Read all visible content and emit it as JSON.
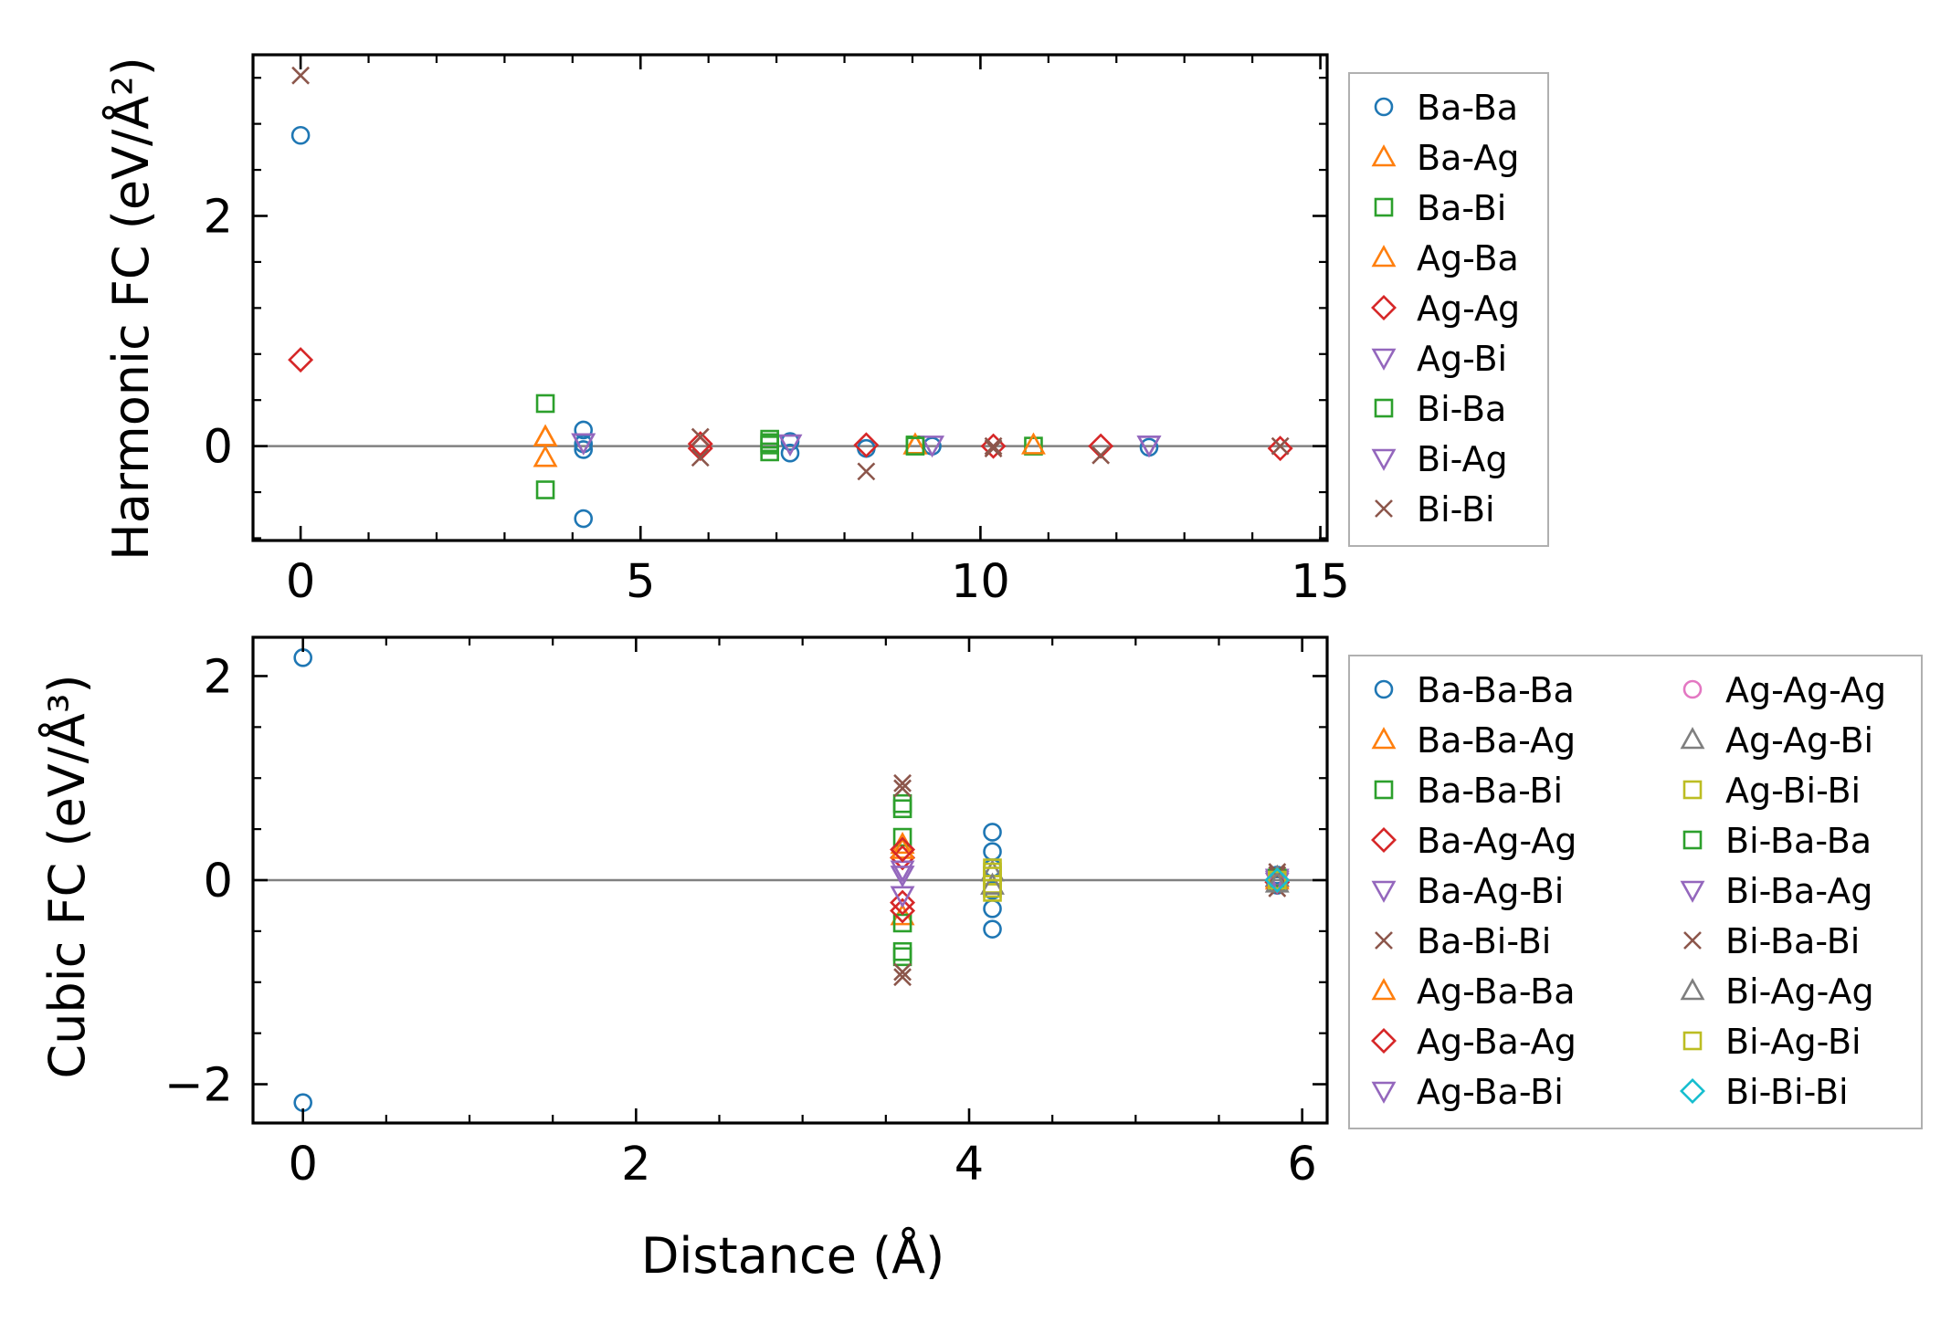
{
  "chart_data": [
    {
      "type": "scatter",
      "ylabel": "Harmonic FC (eV/Å²)",
      "xlabel": "",
      "xlim": [
        -0.7,
        15.1
      ],
      "ylim": [
        -0.82,
        3.4
      ],
      "xticks": [
        0,
        5,
        10,
        15
      ],
      "yticks": [
        0,
        2
      ],
      "xtick_labels": [
        "0",
        "5",
        "10",
        "15"
      ],
      "ytick_labels": [
        "0",
        "2"
      ],
      "minor_x_step": 1,
      "minor_y_step": 0.4,
      "zero_line": true,
      "legend_placement": "outside-right",
      "series": [
        {
          "name": "Ba-Ba",
          "marker": "circle",
          "color": "#1f77b4",
          "points": [
            [
              0,
              2.7
            ],
            [
              4.16,
              0.14
            ],
            [
              4.16,
              -0.63
            ],
            [
              4.16,
              0.02
            ],
            [
              4.16,
              -0.03
            ],
            [
              7.2,
              0.04
            ],
            [
              7.2,
              -0.06
            ],
            [
              8.32,
              -0.02
            ],
            [
              9.29,
              0.0
            ],
            [
              12.48,
              -0.01
            ]
          ]
        },
        {
          "name": "Ba-Ag",
          "marker": "triangle-up",
          "color": "#ff7f0e",
          "points": [
            [
              3.6,
              0.08
            ],
            [
              3.6,
              -0.1
            ],
            [
              9.04,
              0.01
            ]
          ]
        },
        {
          "name": "Ba-Bi",
          "marker": "square",
          "color": "#2ca02c",
          "points": [
            [
              3.6,
              0.37
            ],
            [
              3.6,
              -0.38
            ],
            [
              6.9,
              0.06
            ],
            [
              6.9,
              -0.05
            ],
            [
              6.9,
              0.01
            ],
            [
              9.04,
              0.01
            ],
            [
              10.78,
              0.0
            ]
          ]
        },
        {
          "name": "Ag-Ba",
          "marker": "triangle-up",
          "color": "#ff7f0e",
          "points": [
            [
              3.6,
              0.08
            ],
            [
              9.04,
              0.01
            ],
            [
              10.78,
              0.01
            ]
          ]
        },
        {
          "name": "Ag-Ag",
          "marker": "diamond",
          "color": "#d62728",
          "points": [
            [
              0,
              0.75
            ],
            [
              5.88,
              0.02
            ],
            [
              5.88,
              -0.02
            ],
            [
              8.32,
              0.01
            ],
            [
              10.19,
              0.0
            ],
            [
              11.77,
              0.0
            ],
            [
              14.41,
              -0.02
            ]
          ]
        },
        {
          "name": "Ag-Bi",
          "marker": "triangle-down",
          "color": "#9467bd",
          "points": [
            [
              4.16,
              0.03
            ],
            [
              7.2,
              0.02
            ],
            [
              9.29,
              0.01
            ],
            [
              12.48,
              0.01
            ]
          ]
        },
        {
          "name": "Bi-Ba",
          "marker": "square",
          "color": "#2ca02c",
          "points": [
            [
              6.9,
              0.03
            ],
            [
              9.04,
              0.0
            ]
          ]
        },
        {
          "name": "Bi-Ag",
          "marker": "triangle-down",
          "color": "#9467bd",
          "points": [
            [
              4.16,
              0.03
            ],
            [
              12.48,
              0.01
            ]
          ]
        },
        {
          "name": "Bi-Bi",
          "marker": "x",
          "color": "#8c564b",
          "points": [
            [
              0,
              3.22
            ],
            [
              5.88,
              0.08
            ],
            [
              5.88,
              -0.1
            ],
            [
              8.32,
              -0.22
            ],
            [
              10.19,
              0.0
            ],
            [
              10.19,
              -0.02
            ],
            [
              11.77,
              -0.08
            ],
            [
              14.41,
              0.0
            ]
          ]
        }
      ]
    },
    {
      "type": "scatter",
      "ylabel": "Cubic FC (eV/Å³)",
      "xlabel": "Distance (Å)",
      "xlim": [
        -0.3,
        6.15
      ],
      "ylim": [
        -2.38,
        2.38
      ],
      "xticks": [
        0,
        2,
        4,
        6
      ],
      "yticks": [
        -2,
        0,
        2
      ],
      "xtick_labels": [
        "0",
        "2",
        "4",
        "6"
      ],
      "ytick_labels": [
        "−2",
        "0",
        "2"
      ],
      "minor_x_step": 0.5,
      "minor_y_step": 0.5,
      "zero_line": true,
      "legend_placement": "outside-right",
      "series": [
        {
          "name": "Ba-Ba-Ba",
          "marker": "circle",
          "color": "#1f77b4",
          "points": [
            [
              0,
              2.18
            ],
            [
              0,
              -2.18
            ],
            [
              4.14,
              0.47
            ],
            [
              4.14,
              0.28
            ],
            [
              4.14,
              0.12
            ],
            [
              4.14,
              -0.1
            ],
            [
              4.14,
              -0.28
            ],
            [
              4.14,
              -0.48
            ],
            [
              5.85,
              0.05
            ],
            [
              5.85,
              -0.05
            ]
          ]
        },
        {
          "name": "Ba-Ba-Ag",
          "marker": "triangle-up",
          "color": "#ff7f0e",
          "points": [
            [
              3.6,
              0.35
            ],
            [
              3.6,
              -0.35
            ],
            [
              5.85,
              0.02
            ]
          ]
        },
        {
          "name": "Ba-Ba-Bi",
          "marker": "square",
          "color": "#2ca02c",
          "points": [
            [
              3.6,
              0.75
            ],
            [
              3.6,
              0.42
            ],
            [
              3.6,
              -0.42
            ],
            [
              3.6,
              -0.75
            ],
            [
              5.85,
              0.0
            ]
          ]
        },
        {
          "name": "Ba-Ag-Ag",
          "marker": "diamond",
          "color": "#d62728",
          "points": [
            [
              3.6,
              0.22
            ],
            [
              3.6,
              -0.22
            ],
            [
              5.85,
              -0.02
            ]
          ]
        },
        {
          "name": "Ba-Ag-Bi",
          "marker": "triangle-down",
          "color": "#9467bd",
          "points": [
            [
              3.6,
              0.1
            ],
            [
              5.85,
              0.02
            ]
          ]
        },
        {
          "name": "Ba-Bi-Bi",
          "marker": "x",
          "color": "#8c564b",
          "points": [
            [
              3.6,
              0.95
            ],
            [
              3.6,
              -0.95
            ],
            [
              5.85,
              0.08
            ],
            [
              5.85,
              -0.08
            ]
          ]
        },
        {
          "name": "Ag-Ba-Ba",
          "marker": "triangle-up",
          "color": "#ff7f0e",
          "points": [
            [
              3.6,
              0.3
            ],
            [
              5.85,
              0.0
            ]
          ]
        },
        {
          "name": "Ag-Ba-Ag",
          "marker": "diamond",
          "color": "#d62728",
          "points": [
            [
              3.6,
              0.3
            ],
            [
              3.6,
              -0.3
            ],
            [
              5.85,
              0.0
            ]
          ]
        },
        {
          "name": "Ag-Ba-Bi",
          "marker": "triangle-down",
          "color": "#9467bd",
          "points": [
            [
              3.6,
              -0.15
            ],
            [
              5.85,
              -0.02
            ]
          ]
        },
        {
          "name": "Ag-Ag-Ag",
          "marker": "circle",
          "color": "#e377c2",
          "points": [
            [
              5.85,
              0.0
            ]
          ]
        },
        {
          "name": "Ag-Ag-Bi",
          "marker": "triangle-up",
          "color": "#7f7f7f",
          "points": [
            [
              4.14,
              0.08
            ],
            [
              5.85,
              0.03
            ]
          ]
        },
        {
          "name": "Ag-Bi-Bi",
          "marker": "square",
          "color": "#bcbd22",
          "points": [
            [
              4.14,
              0.12
            ],
            [
              4.14,
              0.04
            ],
            [
              4.14,
              -0.04
            ],
            [
              4.14,
              -0.12
            ],
            [
              5.85,
              0.0
            ]
          ]
        },
        {
          "name": "Bi-Ba-Ba",
          "marker": "square",
          "color": "#2ca02c",
          "points": [
            [
              3.6,
              0.7
            ],
            [
              3.6,
              -0.7
            ],
            [
              5.85,
              0.02
            ]
          ]
        },
        {
          "name": "Bi-Ba-Ag",
          "marker": "triangle-down",
          "color": "#9467bd",
          "points": [
            [
              3.6,
              0.05
            ],
            [
              5.85,
              0.0
            ]
          ]
        },
        {
          "name": "Bi-Ba-Bi",
          "marker": "x",
          "color": "#8c564b",
          "points": [
            [
              3.6,
              0.9
            ],
            [
              3.6,
              -0.9
            ],
            [
              5.85,
              0.05
            ]
          ]
        },
        {
          "name": "Bi-Ag-Ag",
          "marker": "triangle-up",
          "color": "#7f7f7f",
          "points": [
            [
              4.14,
              -0.05
            ],
            [
              5.85,
              -0.03
            ]
          ]
        },
        {
          "name": "Bi-Ag-Bi",
          "marker": "square",
          "color": "#bcbd22",
          "points": [
            [
              4.14,
              0.08
            ],
            [
              4.14,
              -0.08
            ],
            [
              5.85,
              0.0
            ]
          ]
        },
        {
          "name": "Bi-Bi-Bi",
          "marker": "diamond",
          "color": "#17becf",
          "points": [
            [
              5.85,
              0.0
            ]
          ]
        }
      ]
    }
  ]
}
